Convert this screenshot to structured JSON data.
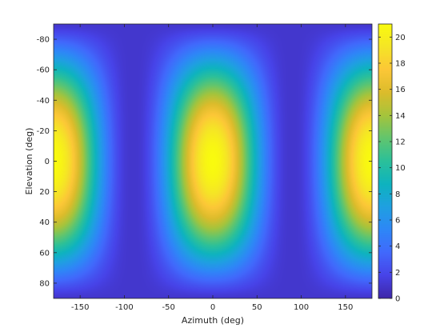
{
  "chart_data": {
    "type": "heatmap",
    "title": "",
    "xlabel": "Azimuth (deg)",
    "ylabel": "Elevation (deg)",
    "xlim": [
      -180,
      180
    ],
    "ylim": [
      -90,
      90
    ],
    "y_direction": "reverse",
    "x_ticks": [
      -150,
      -100,
      -50,
      0,
      50,
      100,
      150
    ],
    "y_ticks": [
      -80,
      -60,
      -40,
      -20,
      0,
      20,
      40,
      60,
      80
    ],
    "colorbar": {
      "range": [
        0,
        21
      ],
      "ticks": [
        0,
        2,
        4,
        6,
        8,
        10,
        12,
        14,
        16,
        18,
        20
      ],
      "colormap": "parula"
    },
    "peaks": [
      {
        "azimuth": 0,
        "elevation": 0,
        "value": 21
      },
      {
        "azimuth": 180,
        "elevation": 0,
        "value": 21
      },
      {
        "azimuth": -180,
        "elevation": 0,
        "value": 21
      }
    ],
    "minimum_value": 1,
    "colormap_stops": [
      "#3e26a8",
      "#4743e8",
      "#4169fc",
      "#2e87f7",
      "#1fa0e1",
      "#0eb3bf",
      "#2bc09a",
      "#61c56e",
      "#a5c43c",
      "#dcbc2b",
      "#fcc737",
      "#f5e526",
      "#f9fb0e"
    ]
  }
}
